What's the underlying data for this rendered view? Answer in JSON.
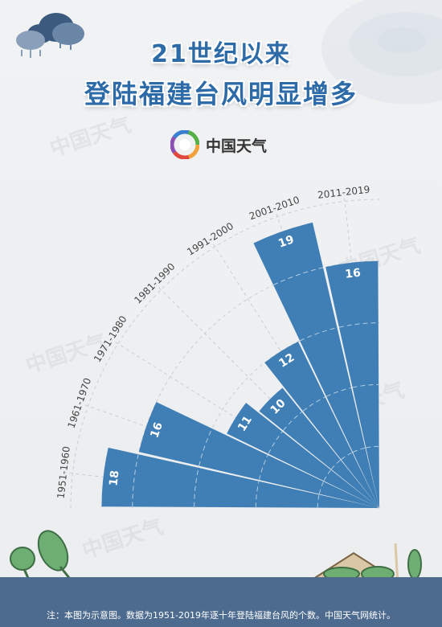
{
  "header": {
    "title_line1": "21世纪以来",
    "title_line2": "登陆福建台风明显增多",
    "brand": "中国天气"
  },
  "watermark": "中国天气",
  "footer": {
    "note": "注：本图为示意图。数据为1951-2019年逐十年登陆福建台风的个数。中国天气网统计。"
  },
  "colors": {
    "bar": "#3f7fb6",
    "title": "#2c6aa8",
    "footer_bg": "#4d6b8f",
    "grid": "#c9cdd3"
  },
  "chart_data": {
    "type": "bar",
    "layout": "radial-fan",
    "categories": [
      "1951-1960",
      "1961-1970",
      "1971-1980",
      "1981-1990",
      "1991-2000",
      "2001-2010",
      "2011-2019"
    ],
    "values": [
      18,
      16,
      11,
      10,
      12,
      19,
      16
    ],
    "labels": [
      "18",
      "16",
      "",
      "",
      "11",
      "10",
      "12",
      "19",
      "16"
    ],
    "value_labels": [
      "18",
      "16",
      "11",
      "10",
      "12",
      "19",
      "16"
    ],
    "title": "",
    "xlabel": "",
    "ylabel": ""
  }
}
